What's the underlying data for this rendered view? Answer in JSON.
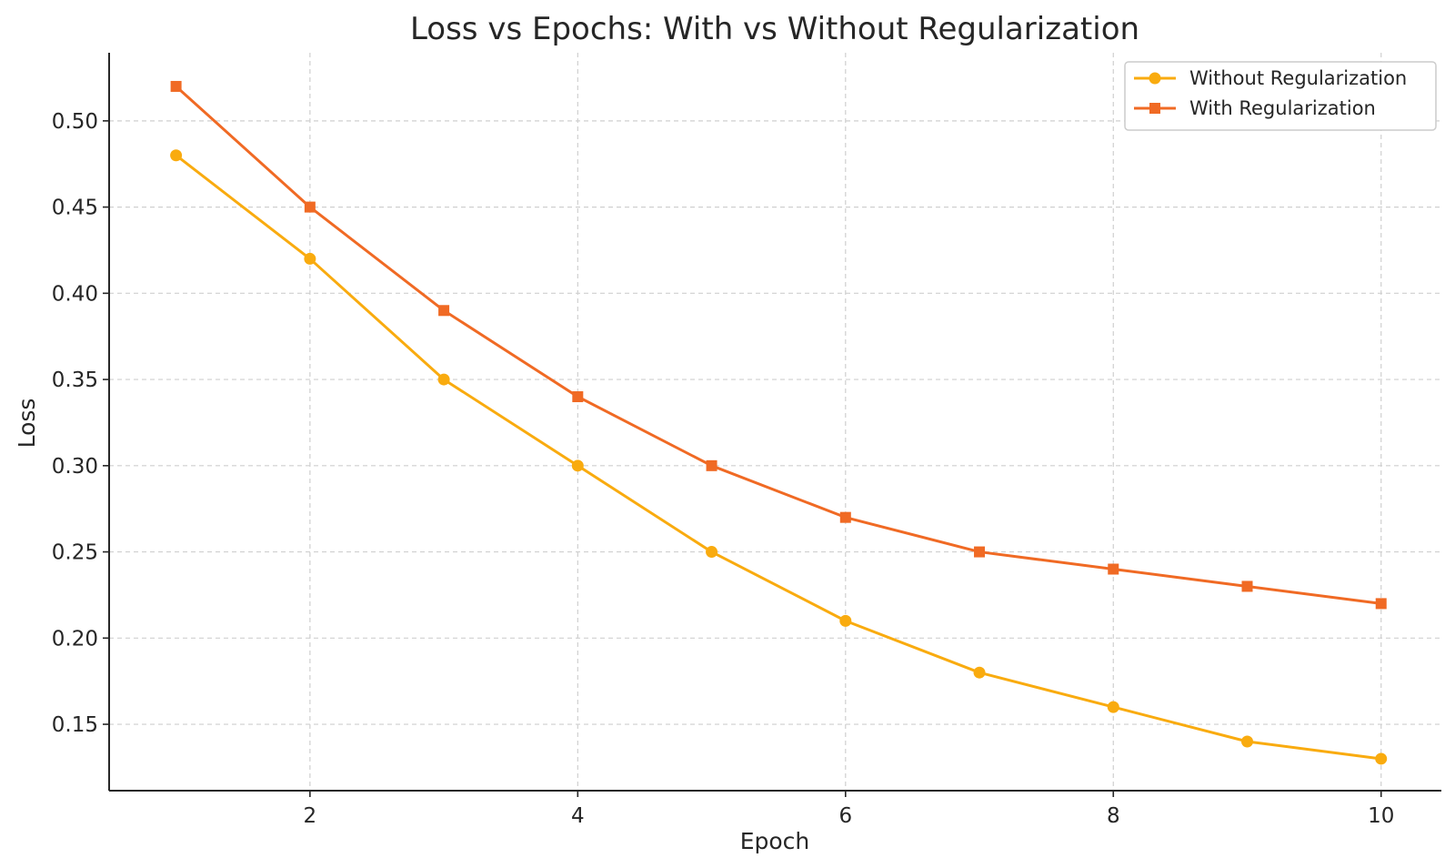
{
  "chart_data": {
    "type": "line",
    "title": "Loss vs Epochs: With vs Without Regularization",
    "xlabel": "Epoch",
    "ylabel": "Loss",
    "x": [
      1,
      2,
      3,
      4,
      5,
      6,
      7,
      8,
      9,
      10
    ],
    "xlim": [
      0.5,
      10.45
    ],
    "ylim": [
      0.1115,
      0.5395
    ],
    "xticks": [
      2,
      4,
      6,
      8,
      10
    ],
    "xtick_labels": [
      "2",
      "4",
      "6",
      "8",
      "10"
    ],
    "yticks": [
      0.15,
      0.2,
      0.25,
      0.3,
      0.35,
      0.4,
      0.45,
      0.5
    ],
    "ytick_labels": [
      "0.15",
      "0.20",
      "0.25",
      "0.30",
      "0.35",
      "0.40",
      "0.45",
      "0.50"
    ],
    "grid": true,
    "legend_position": "top-right",
    "series": [
      {
        "name": "Without Regularization",
        "color": "#f9ab0f",
        "marker": "circle",
        "values": [
          0.48,
          0.42,
          0.35,
          0.3,
          0.25,
          0.21,
          0.18,
          0.16,
          0.14,
          0.13
        ]
      },
      {
        "name": "With Regularization",
        "color": "#f06a24",
        "marker": "square",
        "values": [
          0.52,
          0.45,
          0.39,
          0.34,
          0.3,
          0.27,
          0.25,
          0.24,
          0.23,
          0.22
        ]
      }
    ]
  }
}
